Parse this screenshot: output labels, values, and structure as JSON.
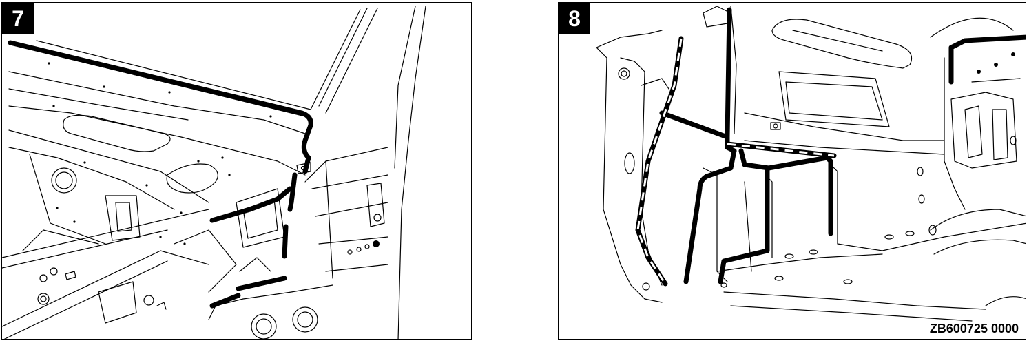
{
  "figures": [
    {
      "step_label": "7"
    },
    {
      "step_label": "8"
    }
  ],
  "drawing_code": "ZB600725 0000"
}
